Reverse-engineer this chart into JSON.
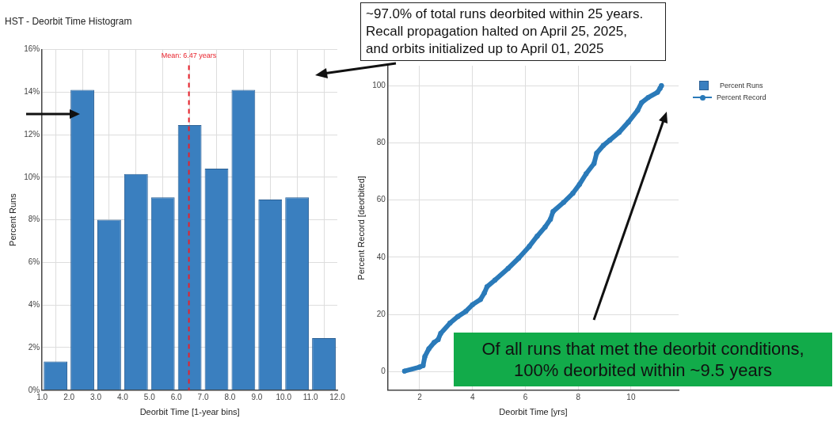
{
  "chart_data": [
    {
      "type": "histogram",
      "title": "HST - Deorbit Time Histogram",
      "xlabel": "Deorbit Time [1-year bins]",
      "ylabel": "Percent Runs",
      "bins": [
        1,
        2,
        3,
        4,
        5,
        6,
        7,
        8,
        9,
        10,
        11,
        12
      ],
      "series": [
        {
          "name": "Percent Runs",
          "color": "#3a7fbf",
          "values": [
            1.35,
            14.1,
            8.0,
            10.15,
            9.05,
            12.45,
            10.4,
            14.1,
            8.95,
            9.05,
            2.45
          ]
        }
      ],
      "xlim": [
        1,
        12
      ],
      "xticks": [
        {
          "value": 1,
          "label": "1.0"
        },
        {
          "value": 2,
          "label": "2.0"
        },
        {
          "value": 3,
          "label": "3.0"
        },
        {
          "value": 4,
          "label": "4.0"
        },
        {
          "value": 5,
          "label": "5.0"
        },
        {
          "value": 6,
          "label": "6.0"
        },
        {
          "value": 7,
          "label": "7.0"
        },
        {
          "value": 8,
          "label": "8.0"
        },
        {
          "value": 9,
          "label": "9.0"
        },
        {
          "value": 10,
          "label": "10.0"
        },
        {
          "value": 11,
          "label": "11.0"
        },
        {
          "value": 12,
          "label": "12.0"
        }
      ],
      "ylim": [
        0,
        16
      ],
      "yticks": [
        {
          "value": 0,
          "label": "0%"
        },
        {
          "value": 2,
          "label": "2%"
        },
        {
          "value": 4,
          "label": "4%"
        },
        {
          "value": 6,
          "label": "6%"
        },
        {
          "value": 8,
          "label": "8%"
        },
        {
          "value": 10,
          "label": "10%"
        },
        {
          "value": 12,
          "label": "12%"
        },
        {
          "value": 14,
          "label": "14%"
        },
        {
          "value": 16,
          "label": "16%"
        }
      ],
      "ref_lines": [
        {
          "axis": "x",
          "value": 6.47,
          "label": "Mean: 6.47 years",
          "color": "#e8202a",
          "line_style": "dashed"
        }
      ],
      "grid": true,
      "legend": "right",
      "annotations": [
        "~97.0% of total runs deorbited within 25 years.\nRecall propagation halted on April 25, 2025,\nand orbits initialized up to April 01, 2025"
      ]
    },
    {
      "type": "line",
      "xlabel": "Deorbit Time [yrs]",
      "ylabel": "Percent Record [deorbited]",
      "series": [
        {
          "name": "Percent Record",
          "color": "#2a7ab9",
          "x": [
            1.43,
            2.0,
            2.13,
            2.2,
            2.35,
            2.55,
            2.7,
            2.8,
            3.15,
            3.45,
            3.75,
            4.0,
            4.3,
            4.45,
            4.55,
            4.85,
            5.35,
            5.75,
            6.15,
            6.45,
            6.75,
            6.95,
            7.05,
            7.45,
            7.8,
            8.05,
            8.3,
            8.6,
            8.7,
            8.95,
            9.2,
            9.55,
            9.9,
            10.25,
            10.4,
            10.65,
            11.0,
            11.1,
            11.15
          ],
          "values": [
            0.2,
            1.6,
            2.1,
            5.3,
            8,
            10.2,
            11.2,
            13.4,
            17,
            19.3,
            21.1,
            23.4,
            25.2,
            27.5,
            29.7,
            32,
            36.1,
            39.7,
            43.8,
            47.4,
            50.6,
            53.3,
            56,
            59.2,
            62.4,
            65.5,
            69.2,
            72.8,
            76.4,
            79.1,
            81,
            83.7,
            87.3,
            91.4,
            94.1,
            95.9,
            97.7,
            99.1,
            100
          ]
        }
      ],
      "xlim": [
        0.8,
        11.8
      ],
      "xticks": [
        2,
        4,
        6,
        8,
        10
      ],
      "ylim": [
        -6.5,
        107
      ],
      "yticks": [
        0,
        20,
        40,
        60,
        80,
        100
      ],
      "grid": true,
      "legend": "right",
      "marker": "circle",
      "line_style": "solid",
      "annotations": [
        "Of all runs that met the deorbit conditions,\n100% deorbited within ~9.5 years"
      ]
    }
  ]
}
